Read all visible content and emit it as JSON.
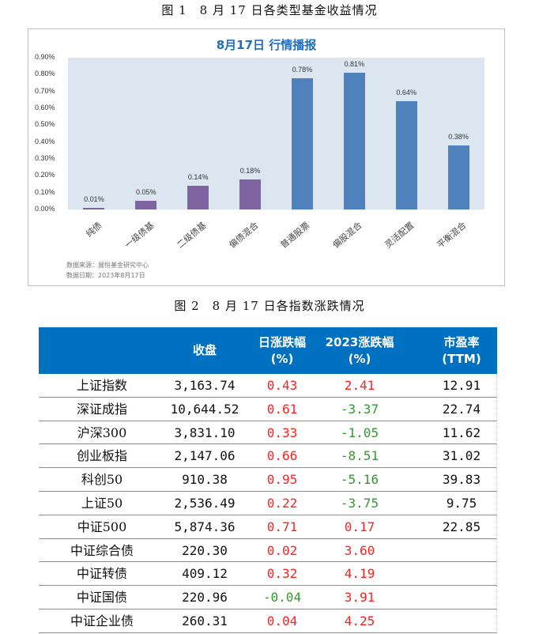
{
  "figure1": {
    "caption": "图 1　8 月 17 日各类型基金收益情况",
    "chart_title": "8月17日  行情播报",
    "source_line": "数据来源：展恒基金研究中心",
    "date_line": "数据日期：2023年8月17日"
  },
  "figure2": {
    "caption": "图 2　8 月 17 日各指数涨跌情况"
  },
  "colors": {
    "bond_bar": "#8064a2",
    "equity_bar": "#4f81bd",
    "plot_bg": "#dce6f1",
    "table_header": "#0070c0",
    "up": "#ff2020",
    "down": "#2e9a2e"
  },
  "chart_data": {
    "type": "bar",
    "title": "8月17日  行情播报",
    "xlabel": "",
    "ylabel": "",
    "ylim": [
      0,
      0.9
    ],
    "yticks": [
      "0.00%",
      "0.10%",
      "0.20%",
      "0.30%",
      "0.40%",
      "0.50%",
      "0.60%",
      "0.70%",
      "0.80%",
      "0.90%"
    ],
    "grid": false,
    "legend": null,
    "categories": [
      "纯债",
      "一级债基",
      "二级债基",
      "偏债混合",
      "普通股票",
      "偏股混合",
      "灵活配置",
      "平衡混合"
    ],
    "values": [
      0.01,
      0.05,
      0.14,
      0.18,
      0.78,
      0.81,
      0.64,
      0.38
    ],
    "labels": [
      "0.01%",
      "0.05%",
      "0.14%",
      "0.18%",
      "0.78%",
      "0.81%",
      "0.64%",
      "0.38%"
    ],
    "bar_colors": [
      "#8064a2",
      "#8064a2",
      "#8064a2",
      "#8064a2",
      "#4f81bd",
      "#4f81bd",
      "#4f81bd",
      "#4f81bd"
    ],
    "unit": "%"
  },
  "table": {
    "headers": {
      "close": "收盘",
      "daily_l1": "日涨跌幅",
      "daily_l2": "(%)",
      "ytd_l1": "2023涨跌幅",
      "ytd_l2": "(%)",
      "pe_l1": "市盈率",
      "pe_l2": "(TTM)"
    },
    "rows": [
      {
        "name": "上证指数",
        "close": "3,163.74",
        "daily": "0.43",
        "ytd": "2.41",
        "pe": "12.91"
      },
      {
        "name": "深证成指",
        "close": "10,644.52",
        "daily": "0.61",
        "ytd": "-3.37",
        "pe": "22.74"
      },
      {
        "name": "沪深300",
        "close": "3,831.10",
        "daily": "0.33",
        "ytd": "-1.05",
        "pe": "11.62"
      },
      {
        "name": "创业板指",
        "close": "2,147.06",
        "daily": "0.66",
        "ytd": "-8.51",
        "pe": "31.02"
      },
      {
        "name": "科创50",
        "close": "910.38",
        "daily": "0.95",
        "ytd": "-5.16",
        "pe": "39.83"
      },
      {
        "name": "上证50",
        "close": "2,536.49",
        "daily": "0.22",
        "ytd": "-3.75",
        "pe": "9.75"
      },
      {
        "name": "中证500",
        "close": "5,874.36",
        "daily": "0.71",
        "ytd": "0.17",
        "pe": "22.85"
      },
      {
        "name": "中证综合债",
        "close": "220.30",
        "daily": "0.02",
        "ytd": "3.60",
        "pe": ""
      },
      {
        "name": "中证转债",
        "close": "409.12",
        "daily": "0.32",
        "ytd": "4.19",
        "pe": ""
      },
      {
        "name": "中证国债",
        "close": "220.96",
        "daily": "-0.04",
        "ytd": "3.91",
        "pe": ""
      },
      {
        "name": "中证企业债",
        "close": "260.31",
        "daily": "0.04",
        "ytd": "4.25",
        "pe": ""
      }
    ]
  }
}
